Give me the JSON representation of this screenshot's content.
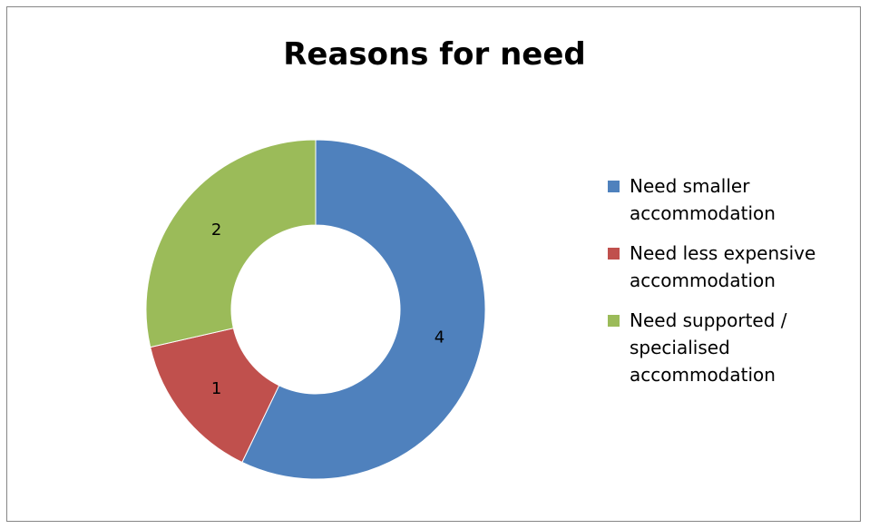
{
  "chart_data": {
    "type": "pie",
    "variant": "donut",
    "title": "Reasons for need",
    "categories": [
      "Need smaller\naccommodation",
      "Need less expensive\naccommodation",
      "Need supported /\nspecialised\naccommodation"
    ],
    "values": [
      4,
      1,
      2
    ],
    "data_labels": [
      "4",
      "1",
      "2"
    ],
    "colors": [
      "#4F81BD",
      "#C0504D",
      "#9BBB59"
    ],
    "legend": "right"
  }
}
